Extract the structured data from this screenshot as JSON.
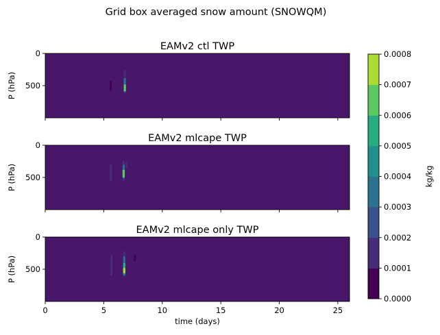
{
  "suptitle": "Grid box averaged snow amount (SNOWQM)",
  "colors": {
    "viridis_levels": [
      "#440154",
      "#472c7a",
      "#3b518b",
      "#2c718e",
      "#21908d",
      "#27ad81",
      "#5cc863",
      "#aadc32",
      "#fde725"
    ],
    "background": "#481769"
  },
  "chart_data": [
    {
      "type": "heatmap",
      "title": "EAMv2 ctl TWP",
      "ylabel": "P (hPa)",
      "xlabel": "",
      "xlim": [
        0,
        26
      ],
      "ylim": [
        1000,
        0
      ],
      "y_inverted": true,
      "xticks": [
        "0",
        "5",
        "10",
        "15",
        "20",
        "25"
      ],
      "yticks": [
        "0",
        "500"
      ],
      "show_xticklabels": false,
      "features": [
        {
          "x": 5.6,
          "p_top": 420,
          "p_bottom": 580,
          "value": 8e-05
        },
        {
          "x": 6.8,
          "p_top": 260,
          "p_bottom": 620,
          "value": 0.00015
        },
        {
          "x": 6.8,
          "p_top": 380,
          "p_bottom": 600,
          "value": 0.00035
        },
        {
          "x": 6.8,
          "p_top": 480,
          "p_bottom": 590,
          "value": 0.00065
        }
      ]
    },
    {
      "type": "heatmap",
      "title": "EAMv2 mlcape TWP",
      "ylabel": "P (hPa)",
      "xlabel": "",
      "xlim": [
        0,
        26
      ],
      "ylim": [
        1000,
        0
      ],
      "y_inverted": true,
      "xticks": [
        "0",
        "5",
        "10",
        "15",
        "20",
        "25"
      ],
      "yticks": [
        "0",
        "500"
      ],
      "show_xticklabels": false,
      "features": [
        {
          "x": 5.6,
          "p_top": 300,
          "p_bottom": 560,
          "value": 0.00012
        },
        {
          "x": 6.7,
          "p_top": 240,
          "p_bottom": 560,
          "value": 0.00018
        },
        {
          "x": 6.7,
          "p_top": 300,
          "p_bottom": 520,
          "value": 0.00035
        },
        {
          "x": 6.7,
          "p_top": 380,
          "p_bottom": 500,
          "value": 0.00065
        },
        {
          "x": 6.95,
          "p_top": 260,
          "p_bottom": 360,
          "value": 0.00012
        }
      ]
    },
    {
      "type": "heatmap",
      "title": "EAMv2 mlcape only TWP",
      "ylabel": "P (hPa)",
      "xlabel": "time (days)",
      "xlim": [
        0,
        26
      ],
      "ylim": [
        1000,
        0
      ],
      "y_inverted": true,
      "xticks": [
        "0",
        "5",
        "10",
        "15",
        "20",
        "25"
      ],
      "yticks": [
        "0",
        "500"
      ],
      "show_xticklabels": true,
      "features": [
        {
          "x": 5.65,
          "p_top": 280,
          "p_bottom": 600,
          "value": 0.00012
        },
        {
          "x": 6.75,
          "p_top": 220,
          "p_bottom": 620,
          "value": 0.00018
        },
        {
          "x": 6.75,
          "p_top": 300,
          "p_bottom": 600,
          "value": 0.00035
        },
        {
          "x": 6.75,
          "p_top": 400,
          "p_bottom": 580,
          "value": 0.00055
        },
        {
          "x": 6.75,
          "p_top": 480,
          "p_bottom": 560,
          "value": 0.0007
        },
        {
          "x": 7.65,
          "p_top": 280,
          "p_bottom": 380,
          "value": 8e-05
        }
      ]
    }
  ],
  "colorbar": {
    "label": "kg/kg",
    "levels": [
      0.0,
      0.0001,
      0.0002,
      0.0003,
      0.0004,
      0.0005,
      0.0006,
      0.0007,
      0.0008
    ],
    "tick_labels": [
      "0.0000",
      "0.0001",
      "0.0002",
      "0.0003",
      "0.0004",
      "0.0005",
      "0.0006",
      "0.0007",
      "0.0008"
    ]
  }
}
